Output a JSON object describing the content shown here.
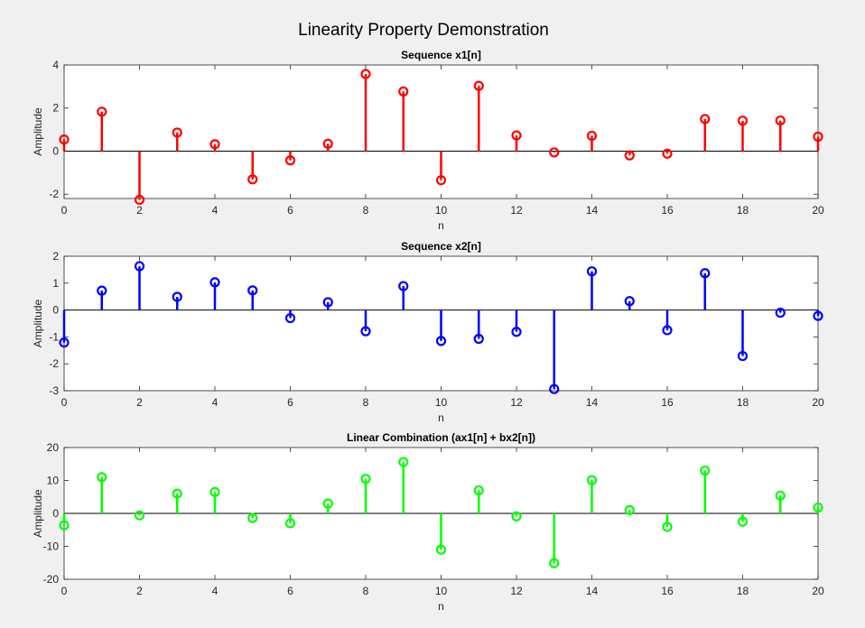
{
  "figure": {
    "title": "Linearity Property Demonstration",
    "background": "#f0f0f0"
  },
  "chart_data": [
    {
      "type": "stem",
      "title": "Sequence x1[n]",
      "xlabel": "n",
      "ylabel": "Amplitude",
      "color": "#ff0000",
      "xlim": [
        0,
        20
      ],
      "ylim": [
        -2.2,
        4
      ],
      "xticks": [
        0,
        2,
        4,
        6,
        8,
        10,
        12,
        14,
        16,
        18,
        20
      ],
      "yticks": [
        -2,
        0,
        2,
        4
      ],
      "x": [
        0,
        1,
        2,
        3,
        4,
        5,
        6,
        7,
        8,
        9,
        10,
        11,
        12,
        13,
        14,
        15,
        16,
        17,
        18,
        19,
        20
      ],
      "values": [
        0.54,
        1.83,
        -2.26,
        0.86,
        0.32,
        -1.31,
        -0.43,
        0.34,
        3.58,
        2.77,
        -1.35,
        3.03,
        0.73,
        -0.06,
        0.71,
        -0.2,
        -0.12,
        1.49,
        1.41,
        1.42,
        0.67
      ]
    },
    {
      "type": "stem",
      "title": "Sequence x2[n]",
      "xlabel": "n",
      "ylabel": "Amplitude",
      "color": "#0000ff",
      "xlim": [
        0,
        20
      ],
      "ylim": [
        -3,
        2
      ],
      "xticks": [
        0,
        2,
        4,
        6,
        8,
        10,
        12,
        14,
        16,
        18,
        20
      ],
      "yticks": [
        -3,
        -2,
        -1,
        0,
        1,
        2
      ],
      "x": [
        0,
        1,
        2,
        3,
        4,
        5,
        6,
        7,
        8,
        9,
        10,
        11,
        12,
        13,
        14,
        15,
        16,
        17,
        18,
        19,
        20
      ],
      "values": [
        -1.21,
        0.72,
        1.63,
        0.49,
        1.03,
        0.73,
        -0.3,
        0.29,
        -0.79,
        0.89,
        -1.15,
        -1.07,
        -0.81,
        -2.94,
        1.44,
        0.33,
        -0.75,
        1.37,
        -1.71,
        -0.1,
        -0.22
      ]
    },
    {
      "type": "stem",
      "title": "Linear Combination (ax1[n] + bx2[n])",
      "xlabel": "n",
      "ylabel": "Amplitude",
      "color": "#00ff00",
      "xlim": [
        0,
        20
      ],
      "ylim": [
        -20,
        20
      ],
      "xticks": [
        0,
        2,
        4,
        6,
        8,
        10,
        12,
        14,
        16,
        18,
        20
      ],
      "yticks": [
        -20,
        -10,
        0,
        10,
        20
      ],
      "x": [
        0,
        1,
        2,
        3,
        4,
        5,
        6,
        7,
        8,
        9,
        10,
        11,
        12,
        13,
        14,
        15,
        16,
        17,
        18,
        19,
        20
      ],
      "values": [
        -3.6,
        11.0,
        -0.6,
        6.0,
        6.5,
        -1.4,
        -3.0,
        3.0,
        10.5,
        15.6,
        -11.0,
        7.0,
        -0.9,
        -15.1,
        10.1,
        1.0,
        -4.1,
        13.0,
        -2.5,
        5.4,
        1.8
      ]
    }
  ]
}
